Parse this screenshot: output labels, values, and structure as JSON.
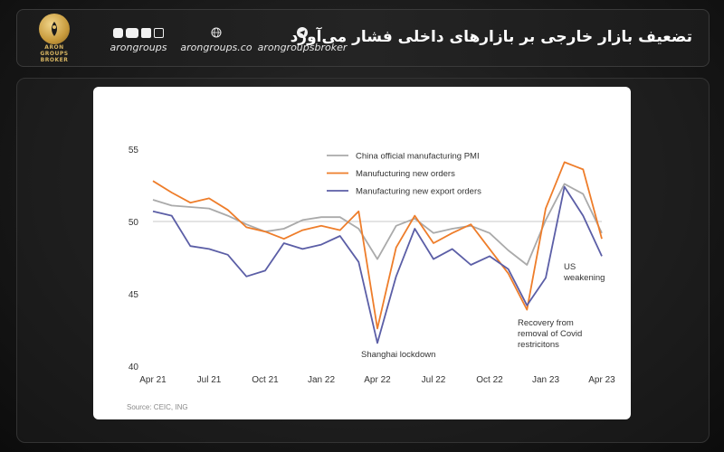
{
  "header": {
    "logo_lines": [
      "ARON",
      "GROUPS",
      "BROKER"
    ],
    "social": [
      {
        "label": "arongroups",
        "icons": [
          "instagram-icon",
          "youtube-icon",
          "linkedin-icon",
          "x-icon"
        ]
      },
      {
        "label": "arongroups.co",
        "icons": [
          "globe-icon"
        ]
      },
      {
        "label": "arongroupsbroker",
        "icons": [
          "telegram-icon"
        ]
      }
    ],
    "title": "تضعیف بازار خارجی بر بازارهای داخلی فشار می‌آورد"
  },
  "chart_data": {
    "type": "line",
    "title": "",
    "xlabel": "",
    "ylabel": "",
    "ylim": [
      40,
      55
    ],
    "yticks": [
      40,
      45,
      50,
      55
    ],
    "xlim": [
      0,
      24
    ],
    "x_tick_labels": [
      "Apr 21",
      "Jul 21",
      "Oct 21",
      "Jan 22",
      "Apr 22",
      "Jul 22",
      "Oct 22",
      "Jan 23",
      "Apr 23"
    ],
    "x_tick_positions": [
      0,
      3,
      6,
      9,
      12,
      15,
      18,
      21,
      24
    ],
    "reference_line": 50,
    "x": [
      "Apr 21",
      "May 21",
      "Jun 21",
      "Jul 21",
      "Aug 21",
      "Sep 21",
      "Oct 21",
      "Nov 21",
      "Dec 21",
      "Jan 22",
      "Feb 22",
      "Mar 22",
      "Apr 22",
      "May 22",
      "Jun 22",
      "Jul 22",
      "Aug 22",
      "Sep 22",
      "Oct 22",
      "Nov 22",
      "Dec 22",
      "Jan 23",
      "Feb 23",
      "Mar 23",
      "Apr 23"
    ],
    "series": [
      {
        "name": "China official manufacturing PMI",
        "color": "#aaaaaa",
        "values": [
          51.5,
          51.1,
          51.0,
          50.9,
          50.4,
          49.8,
          49.3,
          49.5,
          50.1,
          50.3,
          50.3,
          49.5,
          47.4,
          49.7,
          50.2,
          49.2,
          49.5,
          49.7,
          49.2,
          48.0,
          47.0,
          50.1,
          52.6,
          51.9,
          49.2
        ]
      },
      {
        "name": "Manufucturing new orders",
        "color": "#ee7d2a",
        "values": [
          52.8,
          52.0,
          51.3,
          51.6,
          50.8,
          49.6,
          49.3,
          48.8,
          49.4,
          49.7,
          49.4,
          50.7,
          42.6,
          48.2,
          50.4,
          48.5,
          49.2,
          49.8,
          48.1,
          46.4,
          43.9,
          50.9,
          54.1,
          53.6,
          48.8
        ]
      },
      {
        "name": "Manufacturing new export orders",
        "color": "#5b5ea6",
        "values": [
          50.7,
          50.4,
          48.3,
          48.1,
          47.7,
          46.2,
          46.6,
          48.5,
          48.1,
          48.4,
          49.0,
          47.2,
          41.6,
          46.2,
          49.5,
          47.4,
          48.1,
          47.0,
          47.6,
          46.7,
          44.2,
          46.1,
          52.4,
          50.4,
          47.6
        ]
      }
    ],
    "annotations": [
      "Shanghai lockdown",
      "Recovery from removal of Covid restricitons",
      "US weakening"
    ],
    "source": "Source: CEIC, ING"
  }
}
